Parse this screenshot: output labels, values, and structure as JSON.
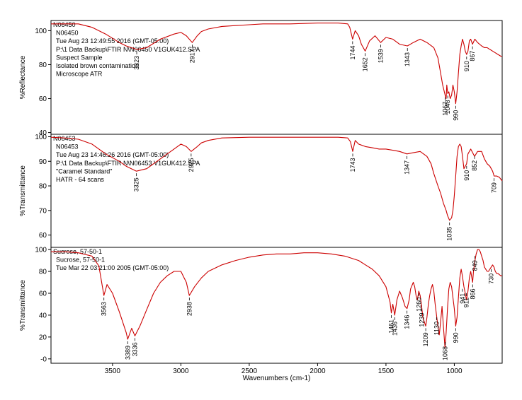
{
  "colors": {
    "trace": "#cc0000",
    "axes": "#000000",
    "background": "#ffffff"
  },
  "xaxis": {
    "label": "Wavenumbers (cm-1)",
    "range": [
      3950,
      650
    ],
    "reversed": true,
    "ticks": [
      3500,
      3000,
      2500,
      2000,
      1500,
      1000
    ],
    "tick_labels": [
      "3500",
      "3000",
      "2500",
      "2000",
      "1500",
      "1000"
    ]
  },
  "chart_data": [
    {
      "type": "line",
      "id": "N06450",
      "ylabel": "%Reflectance",
      "ylim": [
        39,
        106
      ],
      "yticks": [
        40,
        60,
        80,
        100
      ],
      "ytick_labels": [
        "40",
        "60",
        "80",
        "100"
      ],
      "info_lines": [
        "N06450",
        "N06450",
        "Tue Aug 23 12:49:55 2016 (GMT-05:00)",
        "P:\\1 Data Backup\\FTIR N\\N06450 V1GUK412.SPA",
        "Suspect Sample",
        "Isolated brown contamination",
        "Microscope ATR"
      ],
      "series": [
        {
          "x": [
            3950,
            3850,
            3750,
            3650,
            3550,
            3450,
            3400,
            3323,
            3250,
            3150,
            3050,
            3000,
            2960,
            2917,
            2880,
            2850,
            2800,
            2700,
            2600,
            2500,
            2400,
            2200,
            2000,
            1850,
            1780,
            1765,
            1744,
            1725,
            1700,
            1680,
            1652,
            1620,
            1580,
            1539,
            1500,
            1450,
            1400,
            1343,
            1300,
            1250,
            1200,
            1150,
            1120,
            1100,
            1085,
            1067,
            1060,
            1055,
            1048,
            1040,
            1030,
            1020,
            1010,
            1000,
            990,
            980,
            970,
            960,
            950,
            940,
            930,
            920,
            910,
            900,
            890,
            880,
            867,
            850,
            830,
            800,
            780,
            760,
            740,
            720,
            700,
            680,
            660,
            650
          ],
          "y": [
            104,
            104,
            104,
            102,
            98,
            93,
            91,
            89,
            90,
            95,
            98,
            99,
            97,
            93,
            97,
            99.5,
            101,
            102.5,
            103,
            103.5,
            104,
            104,
            104.5,
            104.5,
            104,
            102,
            95,
            100,
            97,
            92,
            88,
            94,
            97,
            93,
            96,
            95,
            92,
            91,
            93,
            95,
            93,
            90,
            84,
            75,
            68,
            62,
            60,
            68,
            63,
            64,
            60,
            62,
            68,
            64,
            57,
            64,
            75,
            86,
            91,
            95,
            92,
            88,
            86,
            88,
            94,
            95,
            92,
            95,
            93,
            91,
            90,
            90,
            89,
            88,
            87,
            86,
            85,
            85
          ]
        }
      ],
      "peaks": [
        {
          "x": 3323,
          "y": 89,
          "label": "3323"
        },
        {
          "x": 2917,
          "y": 93,
          "label": "2917"
        },
        {
          "x": 1744,
          "y": 95,
          "label": "1744"
        },
        {
          "x": 1652,
          "y": 88,
          "label": "1652"
        },
        {
          "x": 1539,
          "y": 93,
          "label": "1539"
        },
        {
          "x": 1343,
          "y": 91,
          "label": "1343"
        },
        {
          "x": 1067,
          "y": 62,
          "label": "1067"
        },
        {
          "x": 1048,
          "y": 63,
          "label": "1048"
        },
        {
          "x": 990,
          "y": 57,
          "label": "990"
        },
        {
          "x": 910,
          "y": 86,
          "label": "910"
        },
        {
          "x": 867,
          "y": 92,
          "label": "867"
        }
      ]
    },
    {
      "type": "line",
      "id": "N06453",
      "ylabel": "%Transmittance",
      "ylim": [
        55,
        101
      ],
      "yticks": [
        60,
        70,
        80,
        90,
        100
      ],
      "ytick_labels": [
        "60",
        "70",
        "80",
        "90",
        "100"
      ],
      "info_lines": [
        "N06453",
        "N06453",
        "Tue Aug 23 14:46:26 2016 (GMT-05:00)",
        "P:\\1 Data Backup\\FTIR N\\N06453 V1GUK412.SPA",
        "\"Caramel Standard\"",
        "HATR - 64 scans"
      ],
      "series": [
        {
          "x": [
            3950,
            3850,
            3750,
            3650,
            3550,
            3450,
            3400,
            3325,
            3250,
            3150,
            3050,
            3000,
            2960,
            2925,
            2880,
            2850,
            2800,
            2700,
            2500,
            2300,
            2000,
            1850,
            1780,
            1760,
            1743,
            1725,
            1700,
            1650,
            1600,
            1550,
            1500,
            1450,
            1400,
            1347,
            1300,
            1250,
            1200,
            1170,
            1150,
            1120,
            1100,
            1080,
            1060,
            1050,
            1035,
            1020,
            1010,
            1000,
            990,
            980,
            970,
            960,
            950,
            940,
            930,
            920,
            910,
            900,
            880,
            852,
            830,
            800,
            780,
            760,
            740,
            720,
            709,
            690,
            670,
            650
          ],
          "y": [
            99.8,
            99.5,
            99,
            97,
            93,
            90,
            88,
            86,
            87,
            91,
            95,
            97,
            96,
            94,
            96,
            97.5,
            98.5,
            99.5,
            99.8,
            99.8,
            99.8,
            99.8,
            99.5,
            98,
            94,
            98.5,
            97,
            96,
            95.5,
            95,
            95,
            94.5,
            94,
            93,
            93.5,
            94,
            92,
            89,
            85,
            80,
            77,
            73,
            70,
            68,
            66,
            67,
            70,
            76,
            84,
            92,
            96,
            97,
            96,
            92,
            87,
            88,
            89,
            93,
            95,
            92,
            94,
            94,
            91,
            89,
            88,
            86,
            84,
            84,
            83.5,
            82
          ]
        }
      ],
      "peaks": [
        {
          "x": 3325,
          "y": 86,
          "label": "3325"
        },
        {
          "x": 2925,
          "y": 94,
          "label": "2925"
        },
        {
          "x": 1743,
          "y": 94,
          "label": "1743"
        },
        {
          "x": 1347,
          "y": 93,
          "label": "1347"
        },
        {
          "x": 1035,
          "y": 66,
          "label": "1035"
        },
        {
          "x": 910,
          "y": 89,
          "label": "910"
        },
        {
          "x": 852,
          "y": 93,
          "label": "852"
        },
        {
          "x": 709,
          "y": 84,
          "label": "709"
        }
      ]
    },
    {
      "type": "line",
      "id": "Sucrose",
      "ylabel": "%Transmittance",
      "ylim": [
        -4,
        102
      ],
      "yticks": [
        0,
        20,
        40,
        60,
        80,
        100
      ],
      "ytick_labels": [
        "-0",
        "20",
        "40",
        "60",
        "80",
        "100"
      ],
      "info_lines": [
        "Sucrose, 57-50-1",
        "Sucrose, 57-50-1",
        "Tue Mar 22 03:21:00 2005 (GMT-05:00)"
      ],
      "series": [
        {
          "x": [
            3950,
            3850,
            3750,
            3650,
            3600,
            3563,
            3540,
            3500,
            3450,
            3400,
            3389,
            3360,
            3336,
            3300,
            3250,
            3200,
            3150,
            3100,
            3050,
            3000,
            2960,
            2938,
            2900,
            2850,
            2800,
            2700,
            2600,
            2500,
            2400,
            2300,
            2200,
            2100,
            2000,
            1900,
            1800,
            1700,
            1650,
            1600,
            1550,
            1500,
            1470,
            1461,
            1450,
            1436,
            1420,
            1400,
            1380,
            1360,
            1346,
            1330,
            1320,
            1300,
            1290,
            1280,
            1270,
            1260,
            1250,
            1239,
            1230,
            1220,
            1209,
            1200,
            1190,
            1180,
            1170,
            1160,
            1150,
            1140,
            1130,
            1120,
            1110,
            1100,
            1090,
            1080,
            1068,
            1060,
            1050,
            1040,
            1030,
            1020,
            1010,
            1000,
            990,
            980,
            970,
            960,
            950,
            941,
            930,
            920,
            911,
            900,
            890,
            880,
            866,
            860,
            849,
            840,
            830,
            820,
            810,
            800,
            790,
            780,
            770,
            760,
            750,
            740,
            730,
            720,
            710,
            700,
            690,
            680,
            670,
            660,
            650
          ],
          "y": [
            98,
            98,
            97,
            94,
            85,
            58,
            68,
            60,
            43,
            24,
            18,
            28,
            21,
            30,
            45,
            60,
            70,
            76,
            80,
            80,
            70,
            58,
            66,
            74,
            80,
            86,
            90,
            93,
            95,
            96,
            96,
            97,
            97,
            96,
            94,
            90,
            86,
            82,
            76,
            66,
            52,
            42,
            50,
            40,
            54,
            62,
            56,
            48,
            46,
            54,
            64,
            70,
            66,
            58,
            54,
            62,
            58,
            48,
            38,
            34,
            30,
            38,
            50,
            58,
            64,
            68,
            62,
            50,
            40,
            30,
            22,
            34,
            48,
            30,
            10,
            24,
            46,
            64,
            70,
            66,
            56,
            46,
            30,
            38,
            56,
            74,
            82,
            76,
            66,
            60,
            54,
            62,
            74,
            80,
            70,
            80,
            90,
            96,
            100,
            100,
            98,
            94,
            90,
            84,
            82,
            80,
            80,
            82,
            84,
            86,
            84,
            80,
            78,
            78,
            77,
            76,
            76
          ]
        }
      ],
      "peaks": [
        {
          "x": 3563,
          "y": 58,
          "label": "3563"
        },
        {
          "x": 3389,
          "y": 18,
          "label": "3389"
        },
        {
          "x": 3336,
          "y": 21,
          "label": "3336"
        },
        {
          "x": 2938,
          "y": 58,
          "label": "2938"
        },
        {
          "x": 1461,
          "y": 42,
          "label": "1461"
        },
        {
          "x": 1436,
          "y": 40,
          "label": "1436"
        },
        {
          "x": 1346,
          "y": 46,
          "label": "1346"
        },
        {
          "x": 1239,
          "y": 48,
          "label": "1239"
        },
        {
          "x": 1260,
          "y": 62,
          "label": "1260"
        },
        {
          "x": 1209,
          "y": 30,
          "label": "1209"
        },
        {
          "x": 1130,
          "y": 40,
          "label": "1130"
        },
        {
          "x": 1068,
          "y": 10,
          "label": "1068"
        },
        {
          "x": 990,
          "y": 30,
          "label": "990"
        },
        {
          "x": 941,
          "y": 66,
          "label": "941"
        },
        {
          "x": 911,
          "y": 62,
          "label": "911"
        },
        {
          "x": 866,
          "y": 70,
          "label": "866"
        },
        {
          "x": 849,
          "y": 96,
          "label": "849"
        },
        {
          "x": 730,
          "y": 84,
          "label": "730"
        }
      ]
    }
  ]
}
